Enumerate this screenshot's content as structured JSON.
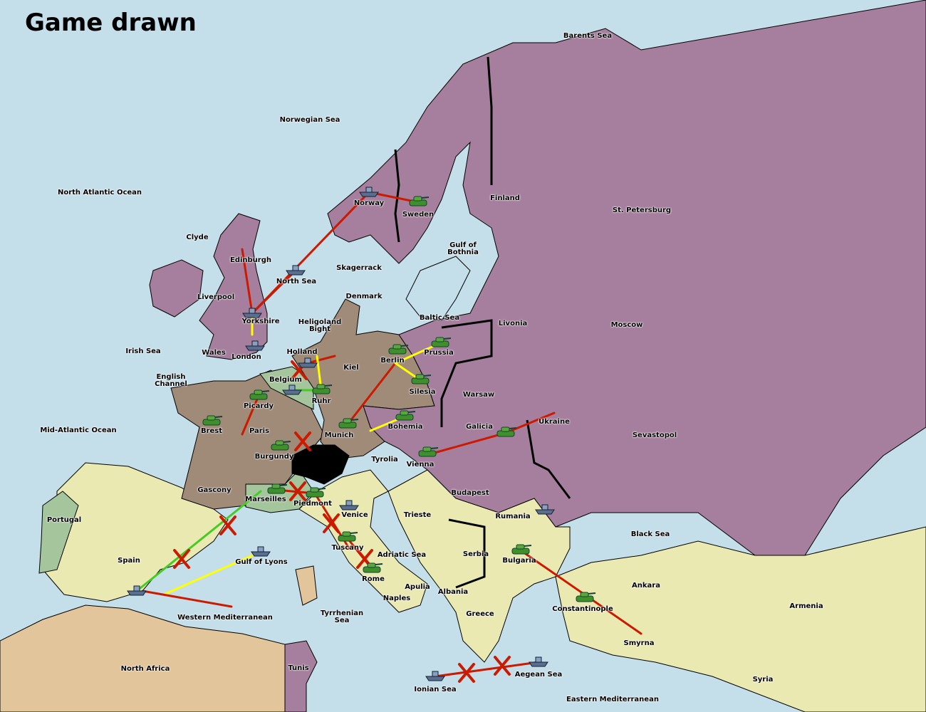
{
  "title": "Game drawn",
  "colors": {
    "sea": "#c5dfea",
    "russia_purple": "#a67e9e",
    "germany_france_brown": "#a08a78",
    "neutral_yellow": "#ebe9b2",
    "green_power": "#a5c59d",
    "north_africa_tan": "#e2c59a",
    "switzerland_impassable": "#000000",
    "move_arrow": "#cc1a00",
    "support_arrow": "#ffff00",
    "convoy_arrow": "#44cc22"
  },
  "territories": [
    "Barents Sea",
    "Norwegian Sea",
    "North Atlantic Ocean",
    "Norway",
    "Sweden",
    "Finland",
    "St. Petersburg",
    "Clyde",
    "Edinburgh",
    "Gulf of Bothnia",
    "Skagerrack",
    "North Sea",
    "Liverpool",
    "Denmark",
    "Baltic Sea",
    "Yorkshire",
    "Heligoland Bight",
    "Livonia",
    "Moscow",
    "Irish Sea",
    "Wales",
    "London",
    "Holland",
    "Prussia",
    "Kiel",
    "Berlin",
    "English Channel",
    "Belgium",
    "Silesia",
    "Warsaw",
    "Ruhr",
    "Picardy",
    "Ukraine",
    "Brest",
    "Paris",
    "Mid-Atlantic Ocean",
    "Bohemia",
    "Galicia",
    "Munich",
    "Sevastopol",
    "Burgundy",
    "Tyrolia",
    "Vienna",
    "Gascony",
    "Budapest",
    "Marseilles",
    "Piedmont",
    "Portugal",
    "Venice",
    "Trieste",
    "Rumania",
    "Black Sea",
    "Serbia",
    "Adriatic Sea",
    "Tuscany",
    "Spain",
    "Gulf of Lyons",
    "Bulgaria",
    "Rome",
    "Apulia",
    "Ankara",
    "Albania",
    "Naples",
    "Armenia",
    "Constantinople",
    "Western Mediterranean",
    "Greece",
    "Tyrrhenian Sea",
    "Smyrna",
    "North Africa",
    "Tunis",
    "Aegean Sea",
    "Ionian Sea",
    "Syria",
    "Eastern Mediterranean"
  ],
  "units": [
    {
      "type": "fleet",
      "location": "Norway"
    },
    {
      "type": "army",
      "location": "Sweden"
    },
    {
      "type": "fleet",
      "location": "North Sea"
    },
    {
      "type": "fleet",
      "location": "Yorkshire"
    },
    {
      "type": "fleet",
      "location": "London"
    },
    {
      "type": "fleet",
      "location": "Holland"
    },
    {
      "type": "army",
      "location": "Ruhr"
    },
    {
      "type": "fleet",
      "location": "Belgium"
    },
    {
      "type": "army",
      "location": "Picardy"
    },
    {
      "type": "army",
      "location": "Brest"
    },
    {
      "type": "army",
      "location": "Burgundy"
    },
    {
      "type": "army",
      "location": "Berlin"
    },
    {
      "type": "army",
      "location": "Prussia"
    },
    {
      "type": "army",
      "location": "Silesia"
    },
    {
      "type": "army",
      "location": "Munich"
    },
    {
      "type": "army",
      "location": "Bohemia"
    },
    {
      "type": "army",
      "location": "Galicia"
    },
    {
      "type": "army",
      "location": "Vienna"
    },
    {
      "type": "army",
      "location": "Marseilles"
    },
    {
      "type": "army",
      "location": "Piedmont"
    },
    {
      "type": "fleet",
      "location": "Venice"
    },
    {
      "type": "army",
      "location": "Tuscany"
    },
    {
      "type": "army",
      "location": "Rome"
    },
    {
      "type": "fleet",
      "location": "Rumania"
    },
    {
      "type": "army",
      "location": "Bulgaria"
    },
    {
      "type": "army",
      "location": "Constantinople"
    },
    {
      "type": "fleet",
      "location": "Gulf of Lyons"
    },
    {
      "type": "fleet",
      "location": "Spain"
    },
    {
      "type": "fleet",
      "location": "Aegean Sea"
    },
    {
      "type": "fleet",
      "location": "Ionian Sea"
    }
  ]
}
